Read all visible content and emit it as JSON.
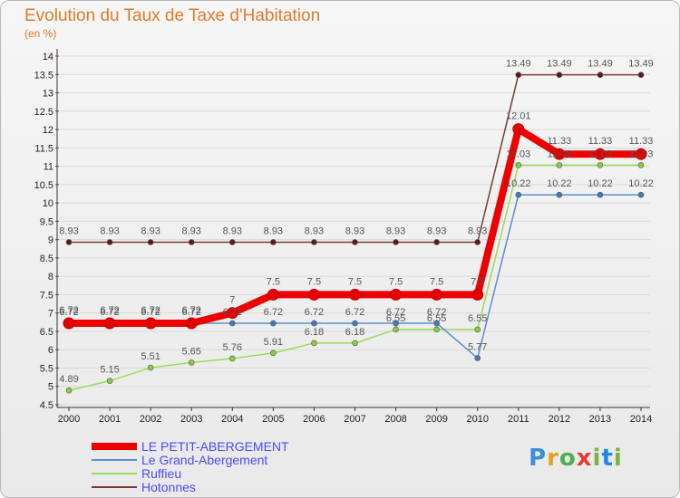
{
  "header": {
    "title": "Evolution du Taux de Taxe d'Habitation",
    "unit": "(en %)"
  },
  "brand": {
    "logo": "Proxiti"
  },
  "colors": {
    "petit": "#ee0000",
    "grand": "#5b8fc9",
    "ruffieu": "#99dd55",
    "hotonnes": "#7a3a3a",
    "petit_point": "#e40000",
    "grand_point": "#4477bb",
    "ruffieu_point": "#88cc44",
    "hotonnes_point": "#5a1a1a"
  },
  "chart_data": {
    "type": "line",
    "title": "Evolution du Taux de Taxe d'Habitation",
    "ylabel": "(en %)",
    "xlabel": "",
    "ylim": [
      4.5,
      14
    ],
    "ytick_step": 0.5,
    "x": [
      2000,
      2001,
      2002,
      2003,
      2004,
      2005,
      2006,
      2007,
      2008,
      2009,
      2010,
      2011,
      2012,
      2013,
      2014
    ],
    "series": [
      {
        "key": "hotonnes",
        "name": "Hotonnes",
        "values": [
          8.93,
          8.93,
          8.93,
          8.93,
          8.93,
          8.93,
          8.93,
          8.93,
          8.93,
          8.93,
          8.93,
          13.49,
          13.49,
          13.49,
          13.49
        ],
        "labels": [
          "8.93",
          "8.93",
          "8.93",
          "8.93",
          "8.93",
          "8.93",
          "8.93",
          "8.93",
          "8.93",
          "8.93",
          "8.93",
          "13.49",
          "13.49",
          "13.49",
          "13.49"
        ]
      },
      {
        "key": "ruffieu",
        "name": "Ruffieu",
        "values": [
          4.89,
          5.15,
          5.51,
          5.65,
          5.76,
          5.91,
          6.18,
          6.18,
          6.55,
          6.55,
          6.55,
          11.03,
          11.03,
          11.03,
          11.03
        ],
        "labels": [
          "4.89",
          "5.15",
          "5.51",
          "5.65",
          "5.76",
          "5.91",
          "6.18",
          "6.18",
          "6.55",
          "6.55",
          "6.55",
          "11.03",
          "11.03",
          "11.03",
          "11.03"
        ]
      },
      {
        "key": "grand",
        "name": "Le Grand-Abergement",
        "values": [
          6.72,
          6.72,
          6.72,
          6.72,
          6.72,
          6.72,
          6.72,
          6.72,
          6.72,
          6.72,
          5.77,
          10.22,
          10.22,
          10.22,
          10.22
        ],
        "labels": [
          "6.72",
          "6.72",
          "6.72",
          "6.72",
          "6.72",
          "6.72",
          "6.72",
          "6.72",
          "6.72",
          "6.72",
          "5.77",
          "10.22",
          "10.22",
          "10.22",
          "10.22"
        ]
      },
      {
        "key": "petit",
        "name": "LE PETIT-ABERGEMENT",
        "values": [
          6.72,
          6.72,
          6.72,
          6.72,
          7,
          7.5,
          7.5,
          7.5,
          7.5,
          7.5,
          7.5,
          12.01,
          11.33,
          11.33,
          11.33
        ],
        "labels": [
          "6.72",
          "6.72",
          "6.72",
          "6.72",
          "7",
          "7.5",
          "7.5",
          "7.5",
          "7.5",
          "7.5",
          "7.5",
          "12.01",
          "11.33",
          "11.33",
          "11.33"
        ]
      }
    ],
    "legend": [
      "LE PETIT-ABERGEMENT",
      "Le Grand-Abergement",
      "Ruffieu",
      "Hotonnes"
    ],
    "legend_position": "bottom-left"
  }
}
